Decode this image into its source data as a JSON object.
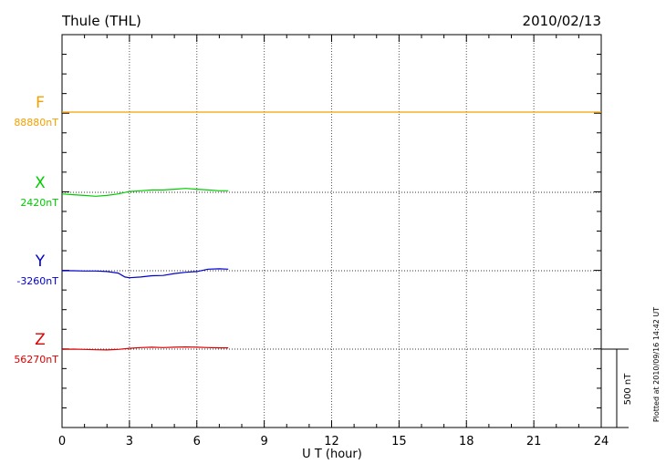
{
  "header": {
    "station": "Thule (THL)",
    "date": "2010/02/13"
  },
  "footer": {
    "plotted": "Plotted at 2010/09/16 14:42 UT"
  },
  "chart_data": {
    "type": "line",
    "title": "Thule (THL)",
    "date": "2010/02/13",
    "xlabel": "U T (hour)",
    "xlim": [
      0,
      24
    ],
    "xticks": [
      0,
      3,
      6,
      9,
      12,
      15,
      18,
      21,
      24
    ],
    "x_tick_labels": [
      "0",
      "3",
      "6",
      "9",
      "12",
      "15",
      "18",
      "21",
      "24"
    ],
    "grid": true,
    "scale_bar": {
      "label": "500 nT",
      "value_nT": 500
    },
    "series": [
      {
        "name": "F",
        "baseline_label": "88880nT",
        "baseline_nT": 88880,
        "color": "#f5a000",
        "x": [
          0,
          24
        ],
        "y": [
          88880,
          88880
        ]
      },
      {
        "name": "X",
        "baseline_label": "2420nT",
        "baseline_nT": 2420,
        "color": "#00cc00",
        "x": [
          0,
          0.5,
          1,
          1.5,
          2,
          2.5,
          3,
          3.5,
          4,
          4.5,
          5,
          5.5,
          6,
          6.5,
          7,
          7.4
        ],
        "y": [
          2410,
          2405,
          2400,
          2395,
          2400,
          2410,
          2425,
          2430,
          2435,
          2435,
          2440,
          2445,
          2440,
          2435,
          2430,
          2430
        ]
      },
      {
        "name": "Y",
        "baseline_label": "-3260nT",
        "baseline_nT": -3260,
        "color": "#0000cc",
        "x": [
          0,
          0.5,
          1,
          1.5,
          2,
          2.5,
          2.8,
          3,
          3.5,
          4,
          4.5,
          5,
          5.5,
          6,
          6.5,
          7,
          7.4
        ],
        "y": [
          -3260,
          -3260,
          -3262,
          -3262,
          -3265,
          -3275,
          -3300,
          -3305,
          -3300,
          -3292,
          -3290,
          -3278,
          -3270,
          -3265,
          -3250,
          -3248,
          -3250
        ]
      },
      {
        "name": "Z",
        "baseline_label": "56270nT",
        "baseline_nT": 56270,
        "color": "#dd0000",
        "x": [
          0,
          0.5,
          1,
          1.5,
          2,
          2.5,
          3,
          3.5,
          4,
          4.5,
          5,
          5.5,
          6,
          6.5,
          7,
          7.4
        ],
        "y": [
          56268,
          56270,
          56268,
          56266,
          56265,
          56268,
          56275,
          56280,
          56282,
          56280,
          56282,
          56284,
          56282,
          56280,
          56278,
          56278
        ]
      }
    ]
  }
}
